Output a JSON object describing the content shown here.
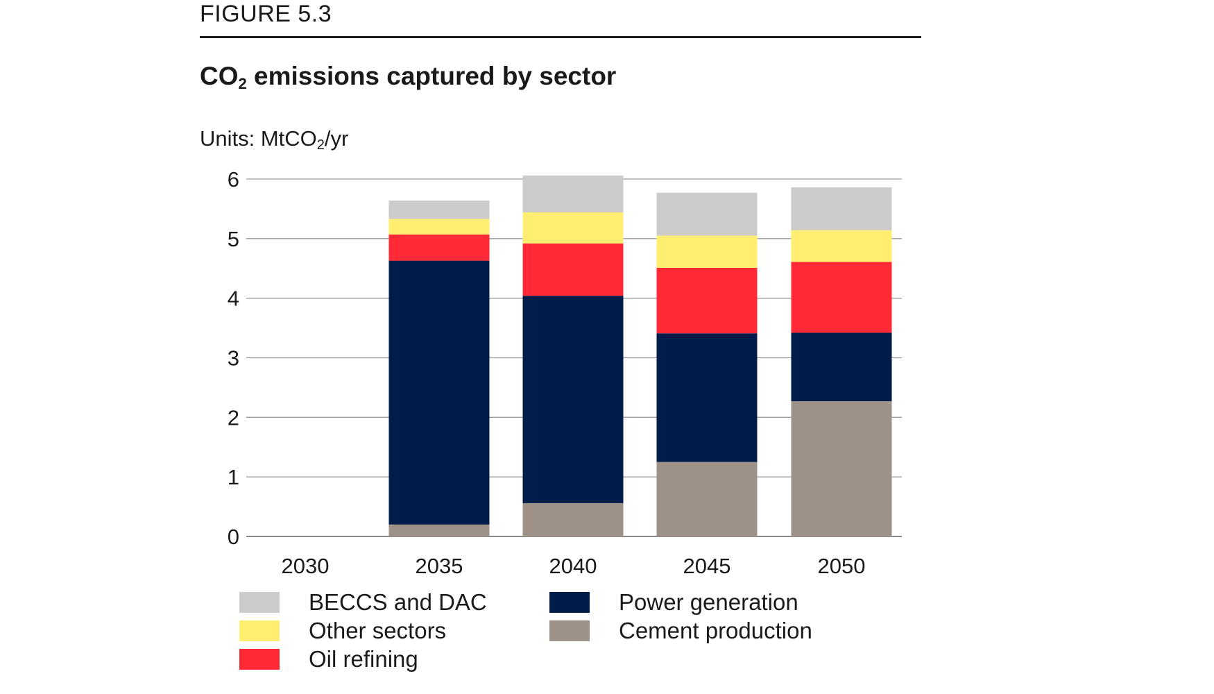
{
  "figure_label": "FIGURE 5.3",
  "title_prefix": "CO",
  "title_sub": "2",
  "title_suffix": " emissions captured by sector",
  "units_prefix": "Units: MtCO",
  "units_sub": "2",
  "units_suffix": "/yr",
  "chart_data": {
    "type": "bar",
    "stacked": true,
    "title": "CO2 emissions captured by sector",
    "ylabel": "MtCO2/yr",
    "ylim": [
      0,
      6
    ],
    "yticks": [
      0,
      1,
      2,
      3,
      4,
      5,
      6
    ],
    "categories": [
      "2030",
      "2035",
      "2040",
      "2045",
      "2050"
    ],
    "series": [
      {
        "name": "Cement production",
        "color": "#9e9288",
        "values": [
          0,
          0.2,
          0.56,
          1.25,
          2.27
        ]
      },
      {
        "name": "Power generation",
        "color": "#001c4a",
        "values": [
          0,
          4.43,
          3.48,
          2.16,
          1.15
        ]
      },
      {
        "name": "Oil refining",
        "color": "#ff2a35",
        "values": [
          0,
          0.44,
          0.88,
          1.1,
          1.19
        ]
      },
      {
        "name": "Other sectors",
        "color": "#ffee70",
        "values": [
          0,
          0.26,
          0.52,
          0.54,
          0.53
        ]
      },
      {
        "name": "BECCS and DAC",
        "color": "#cccbca",
        "values": [
          0,
          0.31,
          0.62,
          0.72,
          0.72
        ]
      }
    ],
    "legend": [
      {
        "name": "BECCS and DAC",
        "color": "#cccbca"
      },
      {
        "name": "Other sectors",
        "color": "#ffee70"
      },
      {
        "name": "Oil refining",
        "color": "#ff2a35"
      },
      {
        "name": "Power generation",
        "color": "#001c4a"
      },
      {
        "name": "Cement production",
        "color": "#9e9288"
      }
    ]
  }
}
